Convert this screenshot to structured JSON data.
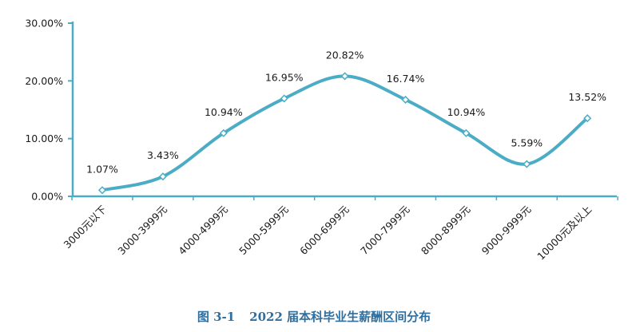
{
  "chart_data": {
    "type": "line",
    "categories": [
      "3000元以下",
      "3000-3999元",
      "4000-4999元",
      "5000-5999元",
      "6000-6999元",
      "7000-7999元",
      "8000-8999元",
      "9000-9999元",
      "10000元及以上"
    ],
    "series": [
      {
        "values": [
          1.07,
          3.43,
          10.94,
          16.95,
          20.82,
          16.74,
          10.94,
          5.59,
          13.52
        ],
        "data_labels": [
          "1.07%",
          "3.43%",
          "10.94%",
          "16.95%",
          "20.82%",
          "16.74%",
          "10.94%",
          "5.59%",
          "13.52%"
        ]
      }
    ],
    "yticks": [
      "0.00%",
      "10.00%",
      "20.00%",
      "30.00%"
    ],
    "ylim": [
      0,
      30
    ],
    "grid": false,
    "line_color": "#4bacc6",
    "smooth": true
  },
  "caption": {
    "number": "图 3-1",
    "title": "2022 届本科毕业生薪酬区间分布"
  }
}
